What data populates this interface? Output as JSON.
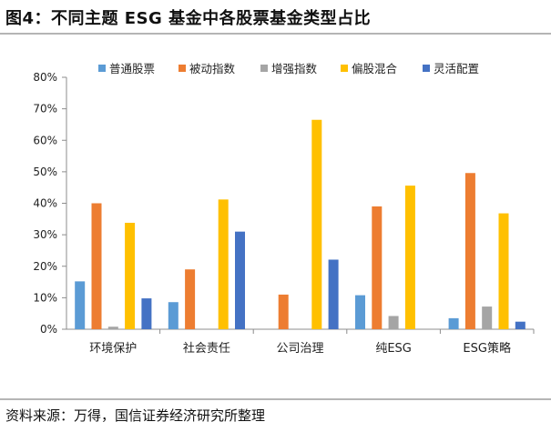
{
  "figure": {
    "title": "图4：不同主题 ESG 基金中各股票基金类型占比",
    "source": "资料来源：万得，国信证券经济研究所整理"
  },
  "chart_data": {
    "type": "bar",
    "title": "",
    "xlabel": "",
    "ylabel": "",
    "categories": [
      "环境保护",
      "社会责任",
      "公司治理",
      "纯ESG",
      "ESG策略"
    ],
    "ylim": [
      0,
      80
    ],
    "yticks": [
      0,
      10,
      20,
      30,
      40,
      50,
      60,
      70,
      80
    ],
    "ytick_labels": [
      "0%",
      "10%",
      "20%",
      "30%",
      "40%",
      "50%",
      "60%",
      "70%",
      "80%"
    ],
    "grid": false,
    "legend_position": "top",
    "series": [
      {
        "name": "普通股票",
        "color": "#5B9BD5",
        "values": [
          15.2,
          8.6,
          0,
          10.8,
          3.5
        ]
      },
      {
        "name": "被动指数",
        "color": "#ED7D31",
        "values": [
          40.0,
          19.0,
          11.0,
          39.0,
          49.6
        ]
      },
      {
        "name": "增强指数",
        "color": "#A5A5A5",
        "values": [
          0.8,
          0,
          0,
          4.2,
          7.2
        ]
      },
      {
        "name": "偏股混合",
        "color": "#FFC000",
        "values": [
          33.8,
          41.2,
          66.5,
          45.6,
          36.8
        ]
      },
      {
        "name": "灵活配置",
        "color": "#4472C4",
        "values": [
          9.8,
          31.0,
          22.1,
          0,
          2.4
        ]
      }
    ]
  }
}
